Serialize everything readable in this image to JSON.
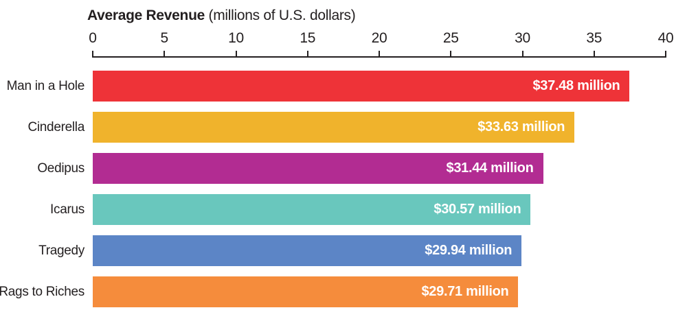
{
  "title": {
    "bold": "Average Revenue",
    "unit": "(millions of U.S. dollars)"
  },
  "chart_data": {
    "type": "bar",
    "orientation": "horizontal",
    "title": "Average Revenue (millions of U.S. dollars)",
    "xlabel": "Average Revenue (millions of U.S. dollars)",
    "ylabel": "",
    "categories": [
      "Man in a Hole",
      "Cinderella",
      "Oedipus",
      "Icarus",
      "Tragedy",
      "Rags to Riches"
    ],
    "values": [
      37.48,
      33.63,
      31.44,
      30.57,
      29.94,
      29.71
    ],
    "value_labels": [
      "$37.48 million",
      "$33.63 million",
      "$31.44 million",
      "$30.57 million",
      "$29.94 million",
      "$29.71 million"
    ],
    "bar_colors": [
      "#ee3338",
      "#f0b32c",
      "#b22c92",
      "#69c7bd",
      "#5c85c6",
      "#f58c3c"
    ],
    "xlim": [
      0,
      40
    ],
    "ticks": [
      0,
      5,
      10,
      15,
      20,
      25,
      30,
      35,
      40
    ],
    "axis_position": "top",
    "grid": false,
    "legend": false,
    "value_label_position": "inside-end",
    "value_label_color": "#ffffff",
    "text_color": "#231f20"
  }
}
